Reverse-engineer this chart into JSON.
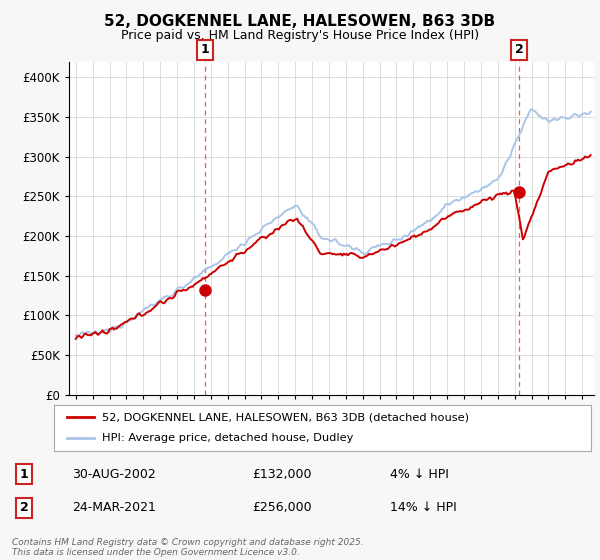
{
  "title": "52, DOGKENNEL LANE, HALESOWEN, B63 3DB",
  "subtitle": "Price paid vs. HM Land Registry's House Price Index (HPI)",
  "legend_line1": "52, DOGKENNEL LANE, HALESOWEN, B63 3DB (detached house)",
  "legend_line2": "HPI: Average price, detached house, Dudley",
  "annotation1_date": "30-AUG-2002",
  "annotation1_price": 132000,
  "annotation1_text": "4% ↓ HPI",
  "annotation2_date": "24-MAR-2021",
  "annotation2_price": 256000,
  "annotation2_text": "14% ↓ HPI",
  "footer": "Contains HM Land Registry data © Crown copyright and database right 2025.\nThis data is licensed under the Open Government Licence v3.0.",
  "hpi_color": "#aac4e8",
  "price_color": "#cc0000",
  "marker_color": "#cc0000",
  "vline_color": "#dd4444",
  "background_color": "#f7f7f7",
  "plot_bg_color": "#ffffff",
  "ylim": [
    0,
    420000
  ],
  "yticks": [
    0,
    50000,
    100000,
    150000,
    200000,
    250000,
    300000,
    350000,
    400000
  ],
  "xlim_left": 1994.6,
  "xlim_right": 2025.7,
  "sale1_year": 2002.667,
  "sale2_year": 2021.25
}
